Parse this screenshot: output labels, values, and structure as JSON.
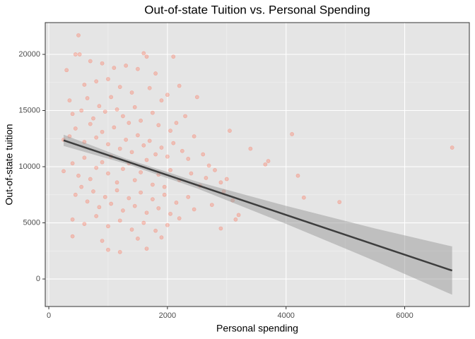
{
  "chart_data": {
    "type": "scatter",
    "title": "Out-of-state Tuition vs. Personal Spending",
    "x_label": "Personal spending",
    "y_label": "Out-of-state tuition",
    "xlim": [
      -60,
      7090
    ],
    "ylim": [
      -2450,
      22830
    ],
    "xticks": [
      0,
      2000,
      4000,
      6000
    ],
    "yticks": [
      0,
      5000,
      10000,
      15000,
      20000
    ],
    "grid": true,
    "points": {
      "color": "#ff6347",
      "x": [
        500,
        450,
        520,
        700,
        900,
        1100,
        1300,
        1500,
        1600,
        1650,
        1800,
        2100,
        2200,
        2000,
        2500,
        300,
        350,
        600,
        800,
        1000,
        1200,
        1400,
        1700,
        1900,
        400,
        550,
        650,
        750,
        850,
        950,
        1050,
        1150,
        1250,
        1350,
        1450,
        1550,
        1750,
        1850,
        2050,
        2150,
        2300,
        2450,
        250,
        350,
        450,
        600,
        700,
        800,
        900,
        1000,
        1100,
        1200,
        1300,
        1400,
        1500,
        1600,
        1700,
        1800,
        1900,
        2000,
        2100,
        2250,
        2350,
        2600,
        2700,
        2800,
        3050,
        3400,
        3650,
        3700,
        4100,
        4200,
        4300,
        4900,
        6800,
        250,
        400,
        500,
        600,
        700,
        800,
        900,
        1000,
        1050,
        1150,
        1250,
        1350,
        1450,
        1550,
        1650,
        1750,
        1850,
        1950,
        2050,
        2200,
        2400,
        2550,
        2650,
        2900,
        3000,
        3100,
        3150,
        3200,
        2950,
        450,
        550,
        650,
        750,
        850,
        950,
        1050,
        1150,
        1250,
        1350,
        1450,
        1550,
        1650,
        1750,
        1850,
        1950,
        2050,
        2150,
        2350,
        2450,
        2750,
        400,
        600,
        800,
        1000,
        1200,
        1400,
        1600,
        1800,
        2000,
        2200,
        2900,
        400,
        900,
        1000,
        1200,
        1500,
        1650,
        1900
      ],
      "values": [
        21700,
        20000,
        20000,
        19400,
        19200,
        18800,
        19000,
        18700,
        20100,
        19800,
        18300,
        19800,
        17200,
        16400,
        16200,
        18600,
        15900,
        17300,
        17600,
        17800,
        17100,
        16600,
        17000,
        15900,
        14700,
        15000,
        16100,
        14300,
        15400,
        14900,
        16200,
        15100,
        14500,
        13900,
        15300,
        14100,
        14800,
        13700,
        13200,
        13900,
        14500,
        12700,
        12400,
        12700,
        13400,
        12200,
        13800,
        12600,
        13100,
        12000,
        13500,
        11600,
        12400,
        11300,
        12800,
        11900,
        12300,
        11100,
        11700,
        10900,
        12100,
        11400,
        10700,
        11100,
        10100,
        9700,
        13200,
        11600,
        10200,
        10500,
        12900,
        9200,
        7250,
        6850,
        11700,
        9600,
        10300,
        9200,
        10800,
        8900,
        9900,
        10400,
        9400,
        10900,
        8600,
        9800,
        10300,
        8800,
        9500,
        10600,
        8400,
        9300,
        8200,
        9700,
        8800,
        9400,
        8300,
        9000,
        8600,
        8900,
        7000,
        5300,
        5700,
        7800,
        7500,
        8200,
        6900,
        7800,
        6400,
        7300,
        6700,
        7900,
        6100,
        7200,
        6500,
        7700,
        5900,
        7100,
        6300,
        7500,
        5800,
        6800,
        7300,
        6200,
        6600,
        5300,
        4900,
        5600,
        4700,
        5200,
        4400,
        5000,
        4300,
        4800,
        5400,
        4500,
        3800,
        3400,
        2600,
        2400,
        3600,
        2700,
        3700
      ]
    },
    "fit": {
      "color": "#3d3d3d",
      "band_color": "#999999",
      "x": [
        250,
        1300,
        2500,
        4000,
        5500,
        6800
      ],
      "values": [
        12350,
        10490,
        8365,
        5708,
        3052,
        750
      ],
      "lower": [
        11850,
        10260,
        8065,
        4908,
        1602,
        -1400
      ],
      "upper": [
        12850,
        10720,
        8665,
        6508,
        4502,
        2900
      ]
    }
  }
}
